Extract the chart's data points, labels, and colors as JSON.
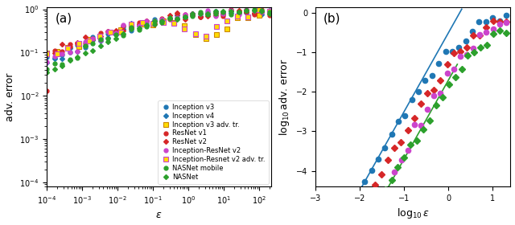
{
  "background_color": "#ffffff",
  "panel_a": {
    "xlabel": "$\\epsilon$",
    "ylabel": "adv. error",
    "label_a": "(a)"
  },
  "panel_b": {
    "xlabel": "$\\log_{10}\\epsilon$",
    "ylabel": "$\\log_{10}$adv. error",
    "label_b": "(b)"
  },
  "series": {
    "inception_v3": {
      "color": "#1f77b4",
      "marker": "o",
      "label": "Inception v3"
    },
    "inception_v4": {
      "color": "#1f77b4",
      "marker": "D",
      "label": "Inception v4"
    },
    "inception_v3_adv": {
      "color": "#ffdd00",
      "mec": "#cc8800",
      "marker": "s",
      "label": "Inception v3 adv. tr."
    },
    "resnet_v1": {
      "color": "#d62728",
      "marker": "o",
      "label": "ResNet v1"
    },
    "resnet_v2": {
      "color": "#d62728",
      "marker": "D",
      "label": "ResNet v2"
    },
    "inception_resnet_v2": {
      "color": "#cc44cc",
      "marker": "o",
      "label": "Inception-ResNet v2"
    },
    "inception_resnet_v2_adv": {
      "color": "#ffdd00",
      "mec": "#cc44cc",
      "marker": "s",
      "label": "Inception-Resnet v2 adv. tr."
    },
    "nasnet_mobile": {
      "color": "#2ca02c",
      "marker": "o",
      "label": "NASNet mobile"
    },
    "nasnet": {
      "color": "#2ca02c",
      "marker": "D",
      "label": "NASNet"
    }
  },
  "fontsize_label": 9,
  "fontsize_tick": 7,
  "fontsize_legend": 6,
  "markersize_a": 3.5,
  "markersize_b": 4.5,
  "linewidth_b": 1.2
}
